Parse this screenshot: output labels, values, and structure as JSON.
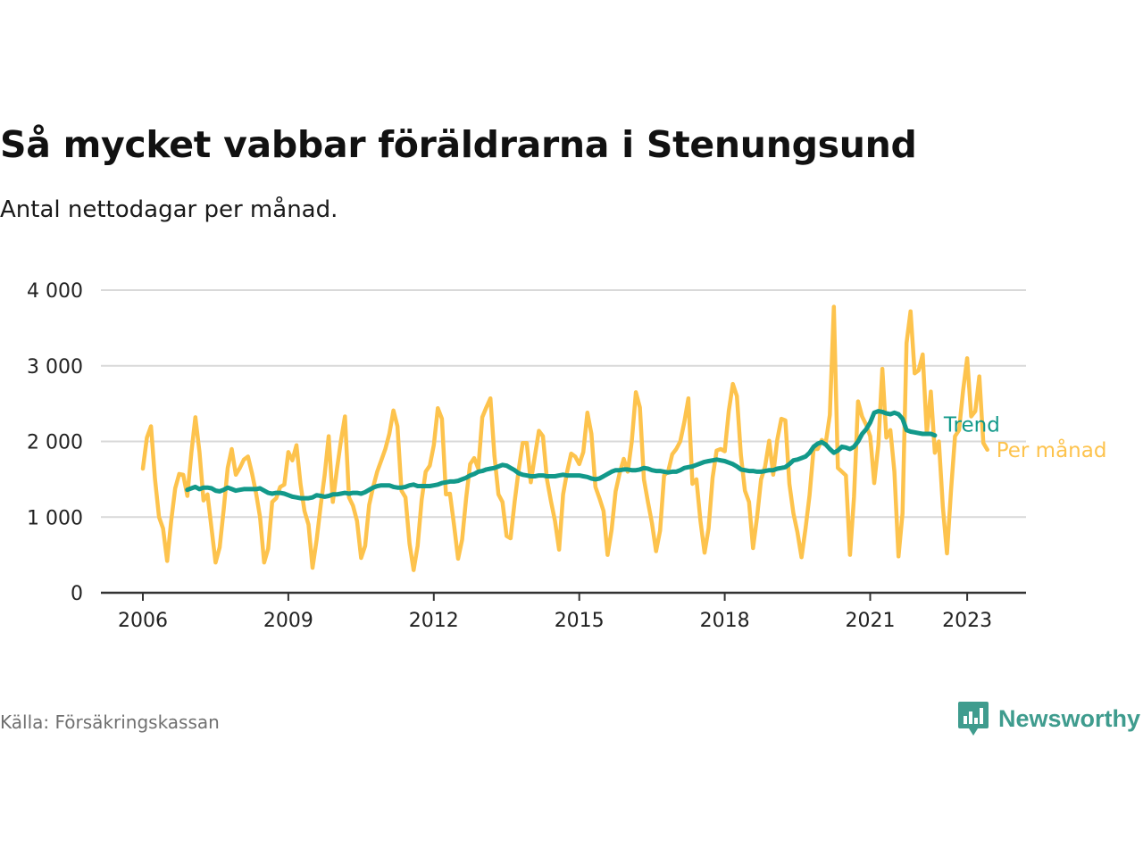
{
  "header": {
    "title": "Så mycket vabbar föräldrarna i Stenungsund",
    "subtitle": "Antal nettodagar per månad."
  },
  "footer": {
    "source": "Källa: Försäkringskassan",
    "brand": "Newsworthy",
    "brand_icon": "newsworthy-logo-icon"
  },
  "colors": {
    "monthly": "#fdc34d",
    "trend": "#12998a",
    "grid": "#d9d9d9",
    "axis": "#333333",
    "brand": "#3f9c8e"
  },
  "chart_data": {
    "type": "line",
    "title": "Så mycket vabbar föräldrarna i Stenungsund",
    "subtitle": "Antal nettodagar per månad.",
    "xlabel": "",
    "ylabel": "",
    "x_ticks": [
      "2006",
      "2009",
      "2012",
      "2015",
      "2018",
      "2021",
      "2023"
    ],
    "y_ticks": [
      "0",
      "1 000",
      "2 000",
      "3 000",
      "4 000"
    ],
    "ylim": [
      0,
      4000
    ],
    "xlim": [
      "2006-01",
      "2023-12"
    ],
    "grid": true,
    "legend": "inline labels at line ends (right)",
    "series": [
      {
        "name": "Per månad",
        "start": "2006-01",
        "values": [
          1640,
          2050,
          2200,
          1500,
          1000,
          850,
          420,
          950,
          1380,
          1570,
          1560,
          1280,
          1850,
          2320,
          1860,
          1220,
          1300,
          850,
          400,
          600,
          1100,
          1650,
          1900,
          1560,
          1650,
          1760,
          1800,
          1580,
          1320,
          1000,
          400,
          580,
          1200,
          1250,
          1400,
          1430,
          1860,
          1750,
          1950,
          1440,
          1080,
          900,
          330,
          700,
          1150,
          1560,
          2070,
          1200,
          1620,
          2000,
          2330,
          1260,
          1150,
          950,
          460,
          620,
          1160,
          1400,
          1600,
          1750,
          1900,
          2100,
          2410,
          2200,
          1350,
          1260,
          650,
          300,
          620,
          1230,
          1600,
          1680,
          1950,
          2440,
          2300,
          1300,
          1310,
          900,
          450,
          700,
          1250,
          1700,
          1780,
          1640,
          2320,
          2450,
          2570,
          1810,
          1300,
          1200,
          750,
          720,
          1200,
          1620,
          1980,
          1980,
          1460,
          1800,
          2140,
          2070,
          1500,
          1210,
          950,
          570,
          1300,
          1600,
          1840,
          1800,
          1700,
          1860,
          2380,
          2100,
          1400,
          1250,
          1080,
          500,
          830,
          1340,
          1580,
          1770,
          1600,
          2000,
          2650,
          2450,
          1500,
          1200,
          920,
          550,
          820,
          1550,
          1600,
          1830,
          1900,
          2000,
          2260,
          2570,
          1440,
          1500,
          950,
          530,
          850,
          1520,
          1880,
          1900,
          1870,
          2400,
          2760,
          2600,
          1820,
          1350,
          1200,
          590,
          1000,
          1500,
          1670,
          2010,
          1560,
          2020,
          2300,
          2280,
          1440,
          1050,
          800,
          470,
          850,
          1290,
          1900,
          1900,
          2020,
          1980,
          2350,
          3780,
          1650,
          1600,
          1550,
          500,
          1270,
          2530,
          2330,
          2220,
          2070,
          1450,
          1950,
          2960,
          2050,
          2150,
          1600,
          480,
          1050,
          3300,
          3720,
          2900,
          2940,
          3150,
          2100,
          2660,
          1850,
          2000,
          1130,
          520,
          1350,
          2070,
          2150,
          2680,
          3100,
          2330,
          2400,
          2860,
          1980,
          1890
        ],
        "end_label": "Per månad"
      },
      {
        "name": "Trend",
        "start": "2006-12",
        "values": [
          1360,
          1380,
          1400,
          1370,
          1390,
          1390,
          1380,
          1350,
          1340,
          1360,
          1390,
          1370,
          1350,
          1360,
          1370,
          1370,
          1370,
          1370,
          1380,
          1350,
          1320,
          1310,
          1320,
          1320,
          1310,
          1290,
          1270,
          1260,
          1250,
          1250,
          1250,
          1260,
          1290,
          1280,
          1270,
          1280,
          1300,
          1300,
          1310,
          1320,
          1310,
          1320,
          1320,
          1310,
          1330,
          1360,
          1390,
          1410,
          1420,
          1420,
          1420,
          1400,
          1390,
          1390,
          1400,
          1420,
          1430,
          1410,
          1410,
          1410,
          1410,
          1420,
          1430,
          1450,
          1460,
          1470,
          1470,
          1480,
          1500,
          1520,
          1550,
          1570,
          1600,
          1610,
          1630,
          1640,
          1650,
          1670,
          1690,
          1680,
          1650,
          1620,
          1580,
          1560,
          1550,
          1540,
          1540,
          1550,
          1550,
          1540,
          1540,
          1540,
          1550,
          1560,
          1550,
          1550,
          1550,
          1550,
          1540,
          1530,
          1510,
          1500,
          1510,
          1540,
          1570,
          1600,
          1620,
          1620,
          1630,
          1630,
          1620,
          1620,
          1630,
          1650,
          1640,
          1620,
          1610,
          1610,
          1600,
          1590,
          1600,
          1600,
          1620,
          1650,
          1660,
          1670,
          1690,
          1710,
          1730,
          1740,
          1750,
          1760,
          1750,
          1740,
          1720,
          1700,
          1670,
          1630,
          1620,
          1610,
          1610,
          1600,
          1600,
          1610,
          1620,
          1620,
          1640,
          1650,
          1660,
          1700,
          1750,
          1760,
          1780,
          1800,
          1850,
          1930,
          1970,
          1990,
          1960,
          1900,
          1850,
          1880,
          1930,
          1920,
          1900,
          1930,
          2000,
          2100,
          2160,
          2250,
          2380,
          2400,
          2390,
          2370,
          2360,
          2380,
          2360,
          2300,
          2150,
          2130,
          2120,
          2110,
          2100,
          2100,
          2100,
          2080
        ]
      }
    ]
  }
}
